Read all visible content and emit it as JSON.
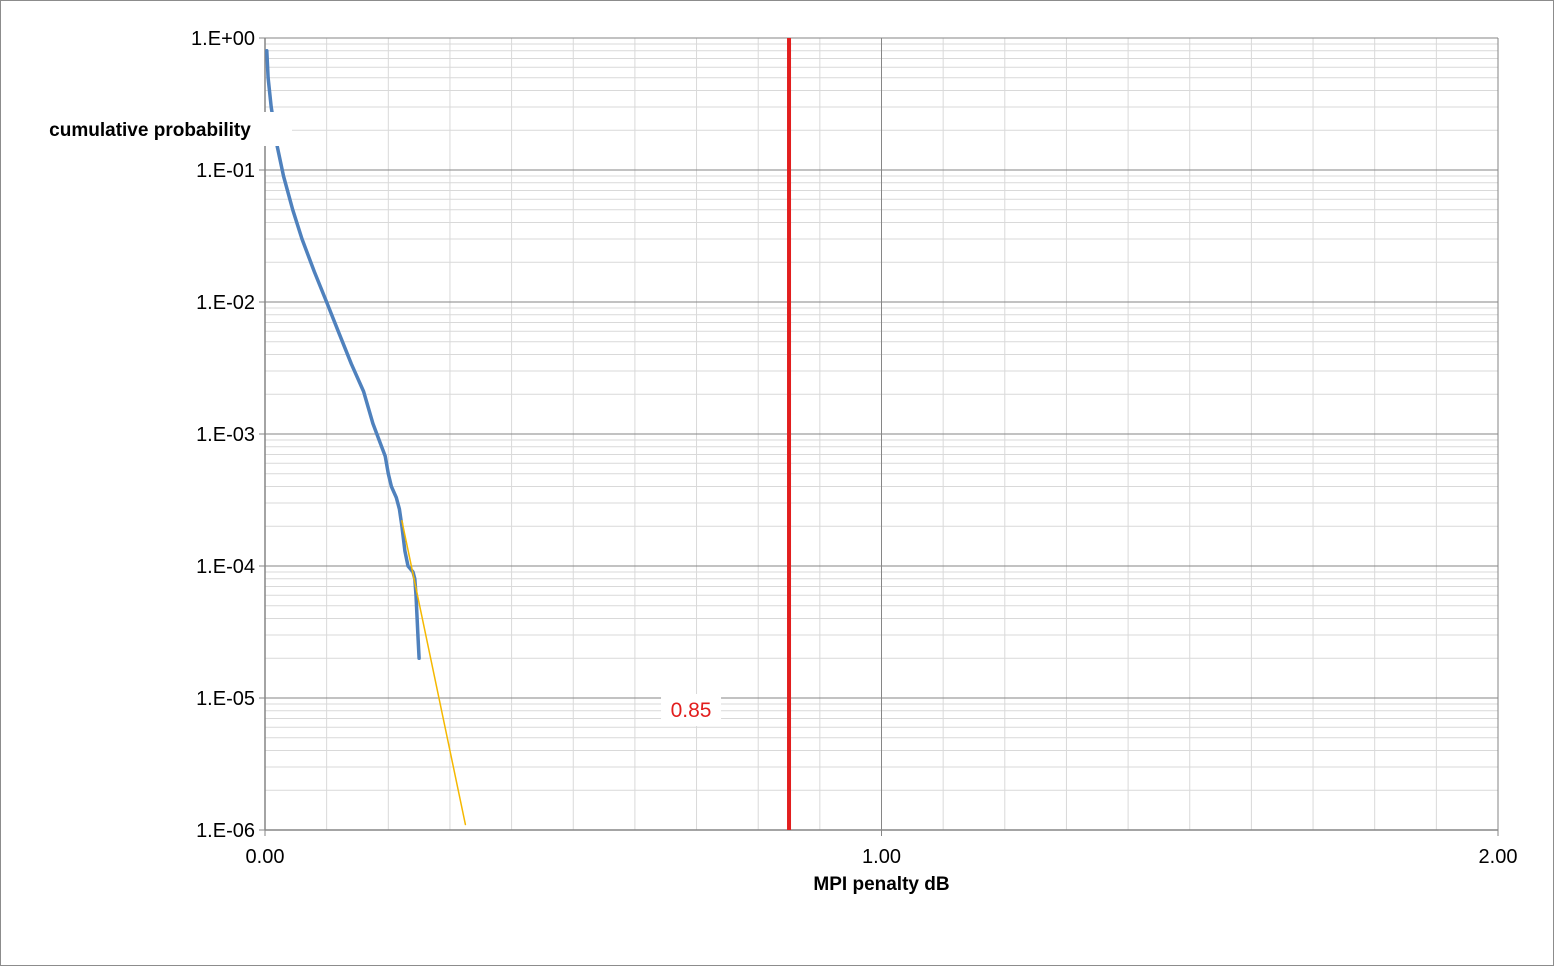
{
  "chart_data": {
    "type": "line",
    "title": "",
    "xlabel": "MPI penalty dB",
    "ylabel": "cumulative probability",
    "x_scale": "linear",
    "y_scale": "log",
    "xlim": [
      0,
      2
    ],
    "ylim": [
      1e-06,
      1
    ],
    "x_tick_values": [
      0,
      1,
      2
    ],
    "x_tick_labels": [
      "0.00",
      "1.00",
      "2.00"
    ],
    "y_tick_values": [
      1,
      0.1,
      0.01,
      0.001,
      0.0001,
      1e-05,
      1e-06
    ],
    "y_tick_labels": [
      "1.E+00",
      "1.E-01",
      "1.E-02",
      "1.E-03",
      "1.E-04",
      "1.E-05",
      "1.E-06"
    ],
    "grid": {
      "major": true,
      "minor": true
    },
    "legend": "none",
    "series": [
      {
        "color": "#4f81bd",
        "points": [
          [
            0.003,
            0.8
          ],
          [
            0.005,
            0.5
          ],
          [
            0.01,
            0.3
          ],
          [
            0.02,
            0.15
          ],
          [
            0.03,
            0.09
          ],
          [
            0.045,
            0.05
          ],
          [
            0.06,
            0.03
          ],
          [
            0.08,
            0.017
          ],
          [
            0.1,
            0.01
          ],
          [
            0.12,
            0.0058
          ],
          [
            0.14,
            0.0034
          ],
          [
            0.16,
            0.0021
          ],
          [
            0.175,
            0.0012
          ],
          [
            0.185,
            0.0009
          ],
          [
            0.195,
            0.00068
          ],
          [
            0.2,
            0.0005
          ],
          [
            0.205,
            0.0004
          ],
          [
            0.213,
            0.00033
          ],
          [
            0.218,
            0.00027
          ],
          [
            0.222,
            0.0002
          ],
          [
            0.227,
            0.00013
          ],
          [
            0.232,
            0.0001
          ],
          [
            0.24,
            9e-05
          ],
          [
            0.243,
            8e-05
          ],
          [
            0.245,
            6e-05
          ],
          [
            0.248,
            3e-05
          ],
          [
            0.25,
            2e-05
          ]
        ]
      },
      {
        "color": "#f5b800",
        "points": [
          [
            0.222,
            0.00022
          ],
          [
            0.325,
            1.1e-06
          ]
        ]
      }
    ],
    "reference_lines": [
      {
        "axis": "x",
        "value": 0.85,
        "color": "#e21e1e",
        "label": "0.85",
        "label_color": "#e21e1e"
      }
    ]
  }
}
